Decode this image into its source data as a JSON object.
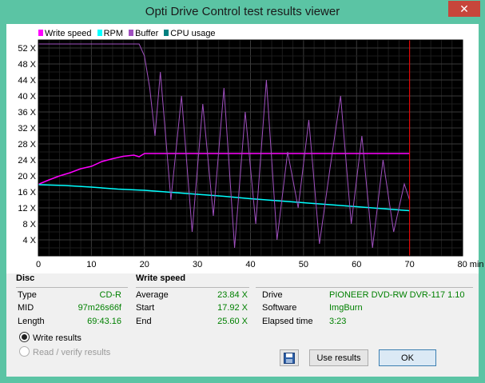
{
  "window": {
    "title": "Opti Drive Control test results viewer",
    "close_label": "✕"
  },
  "legend": [
    {
      "label": "Write speed",
      "color": "#ff00ff"
    },
    {
      "label": "RPM",
      "color": "#00ffff"
    },
    {
      "label": "Buffer",
      "color": "#a050c0"
    },
    {
      "label": "CPU usage",
      "color": "#008080"
    }
  ],
  "chart_data": {
    "type": "line",
    "background": "#000000",
    "grid": true,
    "xlim": [
      0,
      80
    ],
    "ylim": [
      0,
      54
    ],
    "x_ticks": [
      "0",
      "10",
      "20",
      "30",
      "40",
      "50",
      "60",
      "70",
      "80 min"
    ],
    "y_ticks": [
      "4 X",
      "8 X",
      "12 X",
      "16 X",
      "20 X",
      "24 X",
      "28 X",
      "32 X",
      "36 X",
      "40 X",
      "44 X",
      "48 X",
      "52 X"
    ],
    "marker_x": 70,
    "marker_color": "#ff0000",
    "series": [
      {
        "name": "Write speed",
        "color": "#ff00ff",
        "x": [
          0,
          2,
          4,
          6,
          8,
          10,
          12,
          14,
          16,
          18,
          19,
          20,
          22,
          25,
          30,
          35,
          40,
          45,
          50,
          55,
          60,
          65,
          70
        ],
        "y": [
          17.9,
          19,
          20,
          20.8,
          21.8,
          22.4,
          23.6,
          24.3,
          24.9,
          25.2,
          24.8,
          25.6,
          25.6,
          25.6,
          25.6,
          25.6,
          25.6,
          25.6,
          25.6,
          25.6,
          25.6,
          25.6,
          25.6
        ]
      },
      {
        "name": "RPM",
        "color": "#00ffff",
        "x": [
          0,
          5,
          10,
          15,
          20,
          25,
          30,
          35,
          40,
          45,
          50,
          55,
          60,
          65,
          70
        ],
        "y": [
          17.8,
          17.6,
          17.2,
          16.7,
          16.4,
          15.9,
          15.4,
          14.9,
          14.3,
          13.8,
          13.3,
          12.8,
          12.3,
          11.8,
          11.3
        ]
      },
      {
        "name": "Buffer",
        "color": "#a050c0",
        "x": [
          0,
          5,
          10,
          15,
          19,
          20,
          21,
          22,
          23,
          25,
          27,
          29,
          31,
          33,
          35,
          37,
          39,
          41,
          43,
          45,
          47,
          49,
          51,
          53,
          55,
          57,
          59,
          61,
          63,
          65,
          67,
          69,
          70
        ],
        "y": [
          53,
          53,
          53,
          53,
          53,
          50,
          42,
          30,
          46,
          14,
          40,
          6,
          38,
          10,
          42,
          2,
          36,
          8,
          44,
          4,
          26,
          12,
          34,
          3,
          22,
          40,
          8,
          30,
          2,
          24,
          6,
          18,
          14
        ]
      },
      {
        "name": "CPU usage",
        "color": "#008080",
        "x": [],
        "y": []
      }
    ]
  },
  "disc": {
    "title": "Disc",
    "rows": [
      {
        "label": "Type",
        "value": "CD-R"
      },
      {
        "label": "MID",
        "value": "97m26s66f"
      },
      {
        "label": "Length",
        "value": "69:43.16"
      }
    ]
  },
  "write_speed": {
    "title": "Write speed",
    "rows": [
      {
        "label": "Average",
        "value": "23.84 X"
      },
      {
        "label": "Start",
        "value": "17.92 X"
      },
      {
        "label": "End",
        "value": "25.60 X"
      }
    ]
  },
  "drive_info": {
    "rows": [
      {
        "label": "Drive",
        "value": "PIONEER  DVD-RW  DVR-117 1.10"
      },
      {
        "label": "Software",
        "value": "ImgBurn"
      },
      {
        "label": "Elapsed time",
        "value": "3:23"
      }
    ]
  },
  "options": {
    "write_results": "Write results",
    "read_verify_results": "Read / verify results"
  },
  "buttons": {
    "use_results": "Use results",
    "ok": "OK"
  }
}
